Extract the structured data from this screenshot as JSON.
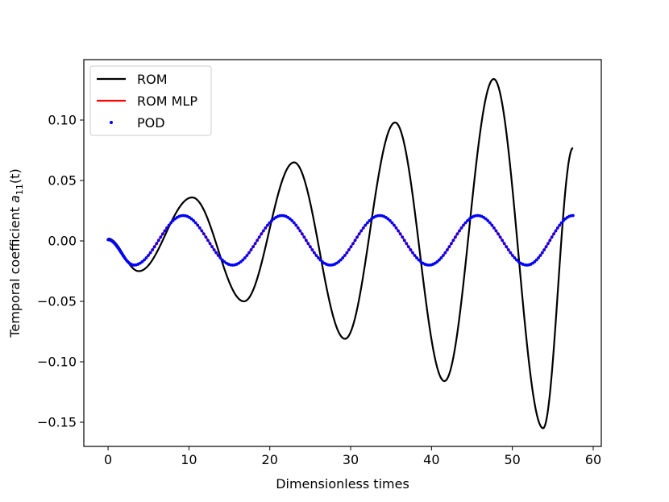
{
  "chart_data": {
    "type": "line",
    "xlabel": "Dimensionless times",
    "ylabel_prefix": "Temporal coefficient ",
    "ylabel_var": "a",
    "ylabel_sub": "11",
    "ylabel_suffix": "(t)",
    "xlim": [
      -3,
      61
    ],
    "ylim": [
      -0.17,
      0.15
    ],
    "xticks": [
      0,
      10,
      20,
      30,
      40,
      50,
      60
    ],
    "xtick_labels": [
      "0",
      "10",
      "20",
      "30",
      "40",
      "50",
      "60"
    ],
    "yticks": [
      -0.15,
      -0.1,
      -0.05,
      0.0,
      0.05,
      0.1
    ],
    "ytick_labels": [
      "−0.15",
      "−0.10",
      "−0.05",
      "0.00",
      "0.05",
      "0.10"
    ],
    "grid": false,
    "legend_position": "top-left",
    "series": [
      {
        "name": "ROM",
        "style": "line",
        "color": "#000000",
        "x": [
          0,
          3.8,
          10.4,
          16.8,
          23.0,
          29.3,
          35.5,
          41.6,
          47.7,
          53.8,
          57.5
        ],
        "y": [
          0.002,
          -0.025,
          0.036,
          -0.05,
          0.065,
          -0.081,
          0.098,
          -0.116,
          0.134,
          -0.155,
          0.077
        ]
      },
      {
        "name": "ROM MLP",
        "style": "line",
        "color": "#ff0000",
        "x": [
          0,
          3.2,
          9.3,
          15.4,
          21.5,
          27.5,
          33.6,
          39.7,
          45.7,
          51.8,
          57.5
        ],
        "y": [
          0.001,
          -0.02,
          0.021,
          -0.02,
          0.021,
          -0.02,
          0.021,
          -0.02,
          0.021,
          -0.02,
          0.021
        ]
      },
      {
        "name": "POD",
        "style": "dots",
        "color": "#0000ff",
        "x": [
          0,
          3.2,
          9.3,
          15.4,
          21.5,
          27.5,
          33.6,
          39.7,
          45.7,
          51.8,
          57.5
        ],
        "y": [
          0.001,
          -0.02,
          0.021,
          -0.02,
          0.021,
          -0.02,
          0.021,
          -0.02,
          0.021,
          -0.02,
          0.021
        ]
      }
    ]
  }
}
